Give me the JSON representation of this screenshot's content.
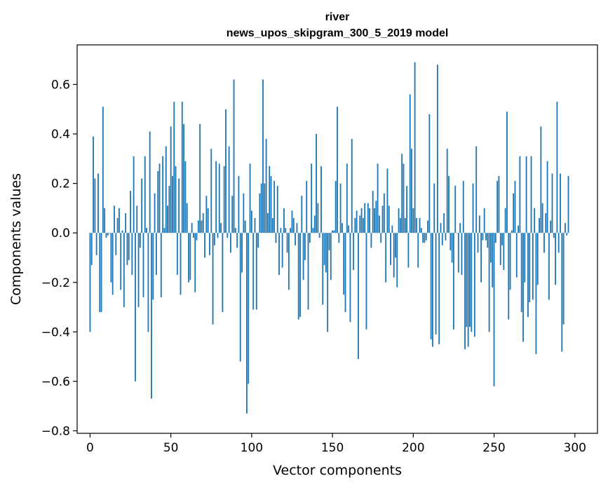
{
  "chart_data": {
    "type": "bar",
    "title": "river",
    "subtitle": "news_upos_skipgram_300_5_2019 model",
    "xlabel": "Vector components",
    "ylabel": "Components values",
    "xlim": [
      -8,
      314
    ],
    "ylim": [
      -0.81,
      0.76
    ],
    "xticks": [
      0,
      50,
      100,
      150,
      200,
      250,
      300
    ],
    "yticks": [
      -0.8,
      -0.6,
      -0.4,
      -0.2,
      0.0,
      0.2,
      0.4,
      0.6
    ],
    "xtick_labels": [
      "0",
      "50",
      "100",
      "150",
      "200",
      "250",
      "300"
    ],
    "ytick_labels": [
      "−0.8",
      "−0.6",
      "−0.4",
      "−0.2",
      "0.0",
      "0.2",
      "0.4",
      "0.6"
    ],
    "color": "#1f77b4",
    "grid": false,
    "series": [
      {
        "values": [
          -0.4,
          -0.13,
          0.39,
          0.22,
          -0.09,
          0.24,
          -0.32,
          -0.32,
          0.51,
          0.1,
          -0.02,
          -0.01,
          0.0,
          -0.2,
          -0.25,
          0.11,
          -0.09,
          0.06,
          0.1,
          -0.23,
          0.01,
          -0.3,
          0.08,
          -0.13,
          -0.11,
          0.17,
          -0.17,
          0.31,
          -0.6,
          0.11,
          -0.3,
          -0.06,
          0.22,
          -0.26,
          0.31,
          0.02,
          -0.4,
          0.41,
          -0.67,
          -0.27,
          0.16,
          -0.17,
          0.25,
          0.28,
          -0.26,
          0.31,
          0.02,
          0.35,
          0.11,
          0.19,
          0.43,
          0.23,
          0.53,
          0.27,
          -0.17,
          0.22,
          -0.25,
          0.53,
          0.44,
          0.29,
          0.12,
          -0.2,
          -0.19,
          0.04,
          -0.02,
          -0.24,
          -0.03,
          0.05,
          0.44,
          0.05,
          0.08,
          -0.1,
          0.15,
          0.1,
          -0.09,
          0.34,
          -0.37,
          -0.05,
          0.29,
          -0.02,
          0.28,
          0.04,
          -0.32,
          0.27,
          0.5,
          -0.02,
          0.35,
          -0.08,
          0.15,
          0.62,
          0.02,
          -0.06,
          0.23,
          -0.52,
          -0.16,
          0.16,
          0.05,
          -0.73,
          -0.61,
          0.28,
          0.09,
          -0.31,
          0.06,
          -0.31,
          -0.06,
          0.16,
          0.2,
          0.62,
          0.2,
          0.38,
          0.08,
          0.27,
          0.23,
          0.06,
          0.21,
          -0.04,
          0.19,
          -0.17,
          0.02,
          -0.14,
          0.1,
          0.02,
          -0.08,
          -0.23,
          0.02,
          0.09,
          0.06,
          -0.05,
          0.04,
          -0.35,
          -0.34,
          0.15,
          -0.19,
          -0.11,
          0.21,
          -0.31,
          -0.04,
          0.28,
          0.02,
          0.07,
          0.4,
          0.12,
          -0.02,
          0.27,
          -0.29,
          -0.13,
          -0.16,
          -0.4,
          -0.07,
          -0.19,
          0.01,
          0.01,
          0.21,
          0.51,
          -0.04,
          0.2,
          0.04,
          -0.25,
          -0.32,
          0.28,
          0.03,
          -0.36,
          0.38,
          -0.15,
          0.06,
          0.09,
          -0.51,
          0.07,
          0.1,
          0.06,
          0.12,
          -0.39,
          0.12,
          0.1,
          -0.06,
          0.17,
          0.1,
          0.13,
          0.28,
          0.07,
          -0.04,
          0.11,
          0.16,
          -0.2,
          0.26,
          0.11,
          -0.13,
          0.03,
          -0.18,
          -0.1,
          -0.22,
          0.1,
          0.06,
          0.32,
          0.28,
          0.06,
          0.19,
          -0.14,
          0.56,
          0.34,
          0.1,
          0.69,
          0.06,
          -0.14,
          0.06,
          0.02,
          -0.04,
          -0.04,
          -0.03,
          0.05,
          0.48,
          -0.43,
          -0.46,
          0.2,
          -0.41,
          0.68,
          -0.45,
          0.04,
          -0.05,
          0.08,
          -0.03,
          0.34,
          0.23,
          -0.07,
          -0.12,
          -0.39,
          0.19,
          0.0,
          -0.16,
          0.04,
          -0.17,
          0.21,
          -0.47,
          -0.38,
          -0.46,
          -0.38,
          -0.4,
          0.2,
          -0.42,
          0.35,
          -0.08,
          0.07,
          -0.2,
          -0.03,
          0.1,
          -0.03,
          -0.06,
          -0.4,
          -0.12,
          -0.22,
          -0.62,
          -0.04,
          0.21,
          0.23,
          -0.13,
          -0.05,
          -0.15,
          0.1,
          0.49,
          -0.35,
          -0.23,
          0.01,
          0.16,
          0.21,
          -0.18,
          0.03,
          0.31,
          -0.32,
          -0.44,
          -0.2,
          0.31,
          -0.34,
          -0.28,
          0.31,
          -0.27,
          0.1,
          -0.49,
          -0.21,
          0.06,
          0.43,
          0.12,
          -0.08,
          0.08,
          0.29,
          -0.27,
          0.05,
          0.24,
          -0.02,
          -0.21,
          0.53,
          -0.08,
          0.24,
          -0.48,
          -0.37,
          0.04,
          -0.01,
          0.23
        ]
      }
    ]
  }
}
